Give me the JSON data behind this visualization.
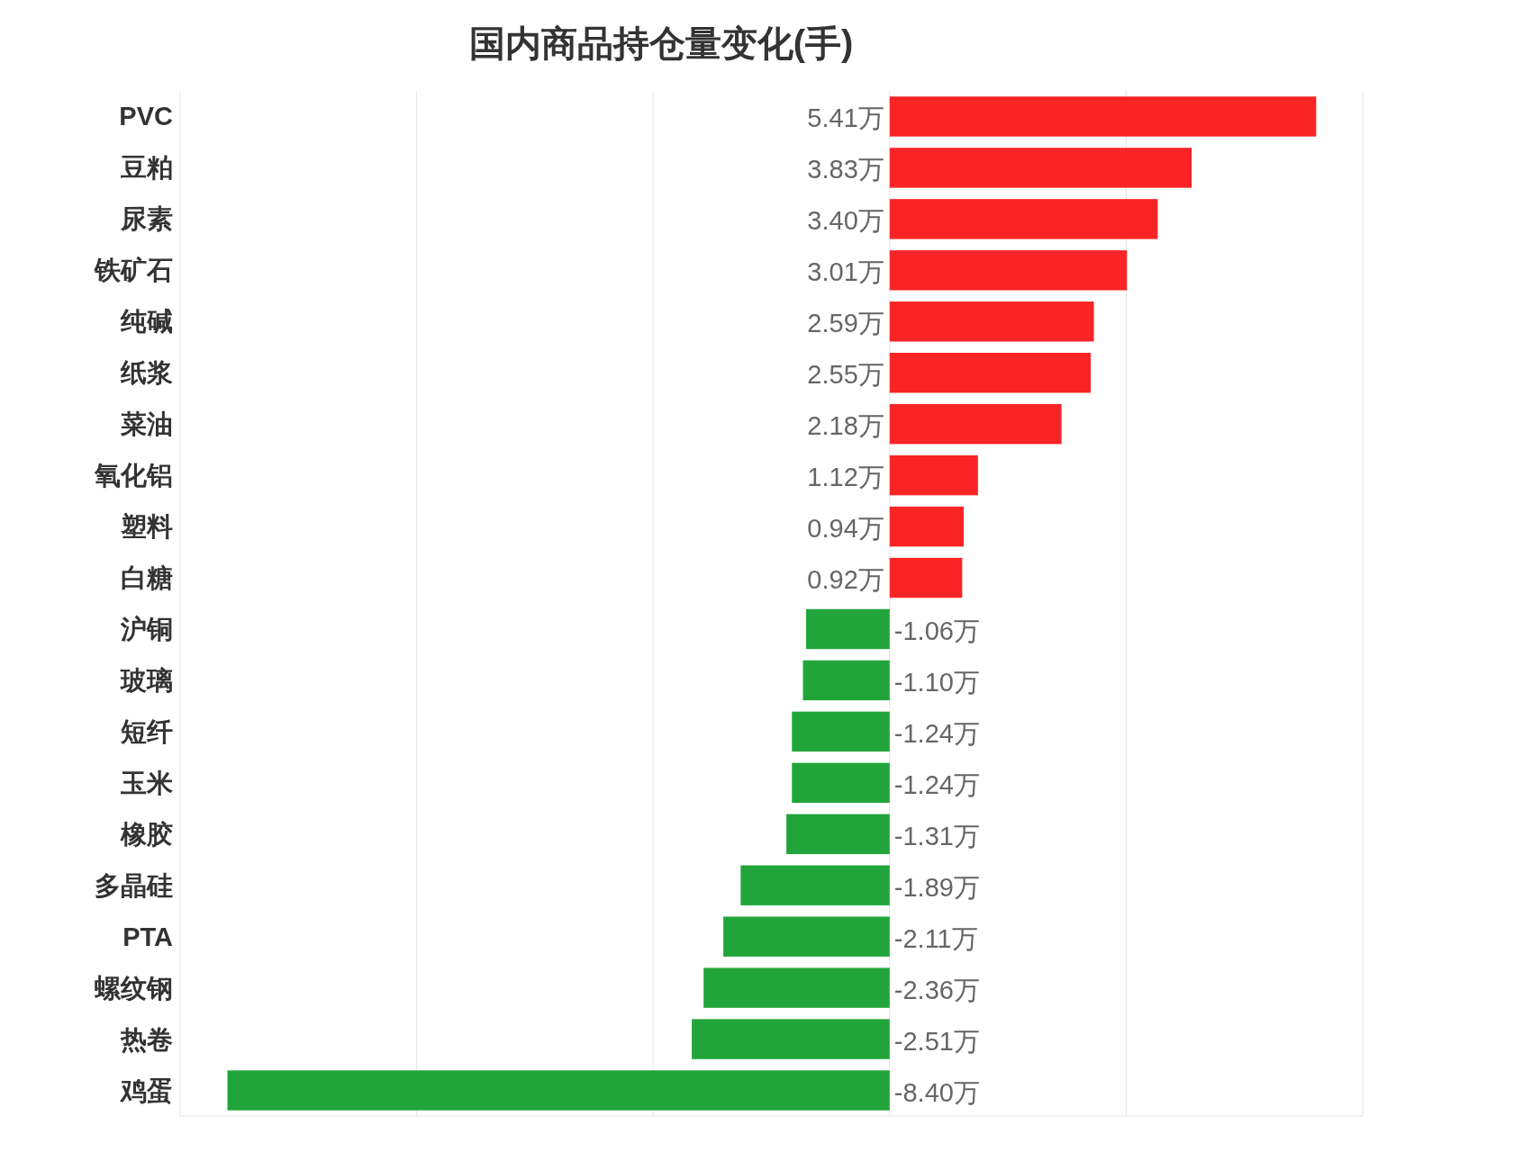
{
  "chart_data": {
    "type": "bar",
    "orientation": "horizontal",
    "title": "国内商品持仓量变化(手)",
    "categories": [
      "PVC",
      "豆粕",
      "尿素",
      "铁矿石",
      "纯碱",
      "纸浆",
      "菜油",
      "氧化铝",
      "塑料",
      "白糖",
      "沪铜",
      "玻璃",
      "短纤",
      "玉米",
      "橡胶",
      "多晶硅",
      "PTA",
      "螺纹钢",
      "热卷",
      "鸡蛋"
    ],
    "values": [
      5.41,
      3.83,
      3.4,
      3.01,
      2.59,
      2.55,
      2.18,
      1.12,
      0.94,
      0.92,
      -1.06,
      -1.1,
      -1.24,
      -1.24,
      -1.31,
      -1.89,
      -2.11,
      -2.36,
      -2.51,
      -8.4
    ],
    "value_labels": [
      "5.41万",
      "3.83万",
      "3.40万",
      "3.01万",
      "2.59万",
      "2.55万",
      "2.18万",
      "1.12万",
      "0.94万",
      "0.92万",
      "-1.06万",
      "-1.10万",
      "-1.24万",
      "-1.24万",
      "-1.31万",
      "-1.89万",
      "-2.11万",
      "-2.36万",
      "-2.51万",
      "-8.40万"
    ],
    "colors": [
      "#f92425",
      "#f92425",
      "#f92425",
      "#f92425",
      "#f92425",
      "#f92425",
      "#f92425",
      "#f92425",
      "#f92425",
      "#f92425",
      "#21a53a",
      "#21a53a",
      "#21a53a",
      "#21a53a",
      "#21a53a",
      "#21a53a",
      "#21a53a",
      "#21a53a",
      "#21a53a",
      "#21a53a"
    ],
    "xlim": [
      -9,
      6
    ],
    "xticks": [
      {
        "value": -9,
        "label": null
      },
      {
        "value": -6,
        "label": null
      },
      {
        "value": -3,
        "label": null
      },
      {
        "value": 0,
        "label": null
      },
      {
        "value": 3,
        "label": null
      },
      {
        "value": 6,
        "label": null
      }
    ],
    "grid": "x",
    "tick_labels": "y"
  }
}
